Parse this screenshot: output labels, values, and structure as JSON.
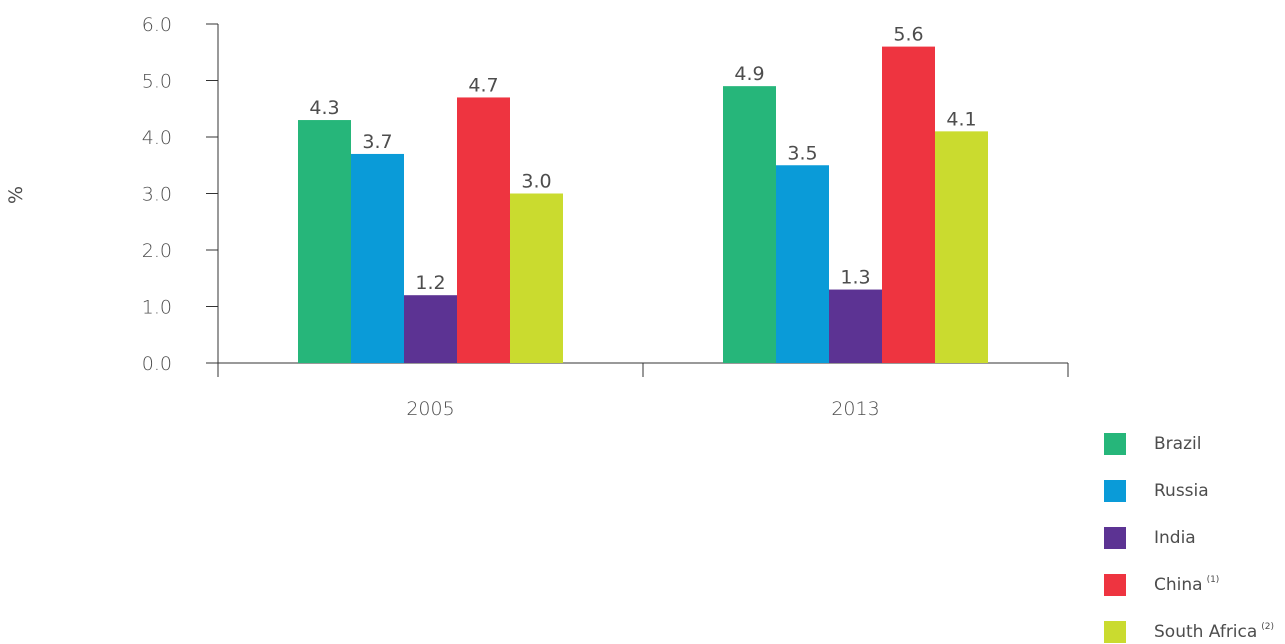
{
  "chart_data": {
    "type": "bar",
    "ylabel": "%",
    "ylim": [
      0,
      6
    ],
    "yticks": [
      "0.0",
      "1.0",
      "2.0",
      "3.0",
      "4.0",
      "5.0",
      "6.0"
    ],
    "categories": [
      "2005",
      "2013"
    ],
    "series": [
      {
        "name": "Brazil",
        "values": [
          4.3,
          4.9
        ],
        "color": "#26b67a",
        "note": ""
      },
      {
        "name": "Russia",
        "values": [
          3.7,
          3.5
        ],
        "color": "#0a9bd8",
        "note": ""
      },
      {
        "name": "India",
        "values": [
          1.2,
          1.3
        ],
        "color": "#5c3393",
        "note": ""
      },
      {
        "name": "China",
        "values": [
          4.7,
          5.6
        ],
        "color": "#ee3440",
        "note": "(1)"
      },
      {
        "name": "South Africa",
        "values": [
          3.0,
          4.1
        ],
        "color": "#cadb2f",
        "note": "(2)"
      }
    ],
    "data_labels": [
      [
        "4.3",
        "4.9"
      ],
      [
        "3.7",
        "3.5"
      ],
      [
        "1.2",
        "1.3"
      ],
      [
        "4.7",
        "5.6"
      ],
      [
        "3.0",
        "4.1"
      ]
    ],
    "legend_position": "bottom-right",
    "grid": false
  }
}
